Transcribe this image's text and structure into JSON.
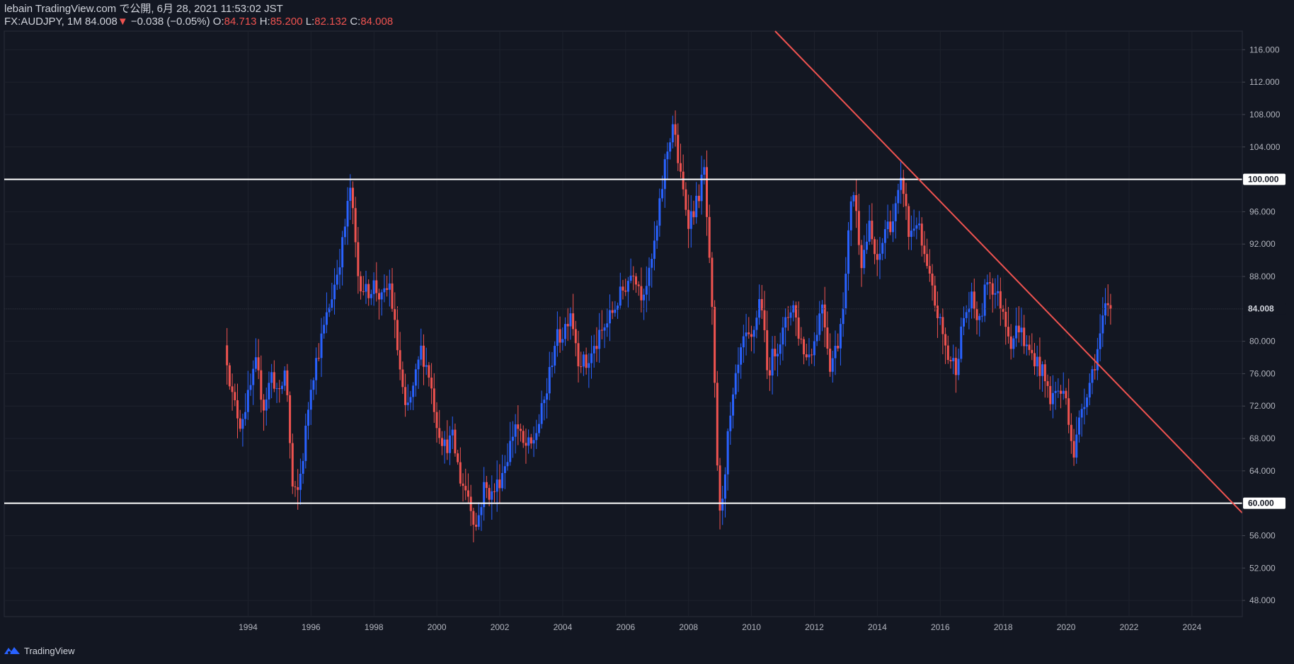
{
  "header": {
    "line1": "lebain TradingView.com で公開, 6月 28, 2021 11:53:02 JST",
    "symbol": "FX:AUDJPY, 1M",
    "last": "84.008",
    "change": "−0.038 (−0.05%)",
    "o_label": "O:",
    "o_value": "84.713",
    "h_label": "H:",
    "h_value": "85.200",
    "l_label": "L:",
    "l_value": "82.132",
    "c_label": "C:",
    "c_value": "84.008"
  },
  "footer": {
    "brand": "TradingView"
  },
  "colors": {
    "background": "#131722",
    "up": "#2962ff",
    "down": "#ef5350",
    "grid": "#1e222d",
    "axis_text": "#b2b5be"
  },
  "chart_data": {
    "type": "candlestick",
    "symbol": "FX:AUDJPY",
    "interval": "1M",
    "xlim": [
      1986.25,
      2025.6
    ],
    "ylim": [
      46.0,
      118.3
    ],
    "x_ticks": [
      1994,
      1996,
      1998,
      2000,
      2002,
      2004,
      2006,
      2008,
      2010,
      2012,
      2014,
      2016,
      2018,
      2020,
      2022,
      2024
    ],
    "y_ticks": [
      48,
      52,
      56,
      60,
      64,
      68,
      72,
      76,
      80,
      84,
      88,
      92,
      96,
      100,
      104,
      108,
      112,
      116
    ],
    "horizontal_lines": [
      {
        "price": 100.0,
        "label": "100.000",
        "color": "#ffffff"
      },
      {
        "price": 60.0,
        "label": "60.000",
        "color": "#ffffff"
      }
    ],
    "trendline": {
      "from": {
        "x": 2010.75,
        "y": 118.3
      },
      "to": {
        "x": 2025.6,
        "y": 58.8
      },
      "color": "#ef5350"
    },
    "last_price": {
      "price": 84.008,
      "label": "84.008"
    },
    "close_path": [
      [
        1993.33,
        78.0
      ],
      [
        1993.5,
        73.0
      ],
      [
        1993.75,
        70.0
      ],
      [
        1994.0,
        73.0
      ],
      [
        1994.25,
        77.0
      ],
      [
        1994.5,
        72.0
      ],
      [
        1994.75,
        76.0
      ],
      [
        1995.0,
        73.0
      ],
      [
        1995.2,
        77.0
      ],
      [
        1995.4,
        62.0
      ],
      [
        1995.55,
        60.5
      ],
      [
        1995.75,
        66.0
      ],
      [
        1996.0,
        75.0
      ],
      [
        1996.5,
        83.0
      ],
      [
        1996.8,
        88.0
      ],
      [
        1997.0,
        92.0
      ],
      [
        1997.25,
        99.0
      ],
      [
        1997.5,
        88.0
      ],
      [
        1997.75,
        86.0
      ],
      [
        1998.0,
        87.0
      ],
      [
        1998.25,
        85.0
      ],
      [
        1998.5,
        87.0
      ],
      [
        1998.75,
        79.0
      ],
      [
        1999.0,
        71.0
      ],
      [
        1999.25,
        74.0
      ],
      [
        1999.5,
        79.0
      ],
      [
        1999.75,
        76.0
      ],
      [
        2000.0,
        70.0
      ],
      [
        2000.25,
        67.0
      ],
      [
        2000.5,
        68.0
      ],
      [
        2000.75,
        63.0
      ],
      [
        2001.0,
        61.0
      ],
      [
        2001.25,
        57.0
      ],
      [
        2001.5,
        62.0
      ],
      [
        2001.75,
        61.0
      ],
      [
        2002.0,
        63.0
      ],
      [
        2002.25,
        66.0
      ],
      [
        2002.5,
        70.0
      ],
      [
        2002.75,
        67.0
      ],
      [
        2003.0,
        67.0
      ],
      [
        2003.25,
        70.0
      ],
      [
        2003.5,
        74.0
      ],
      [
        2003.75,
        80.0
      ],
      [
        2004.0,
        81.0
      ],
      [
        2004.25,
        84.0
      ],
      [
        2004.5,
        78.0
      ],
      [
        2004.75,
        77.0
      ],
      [
        2005.0,
        79.0
      ],
      [
        2005.5,
        83.0
      ],
      [
        2005.75,
        85.0
      ],
      [
        2006.0,
        87.0
      ],
      [
        2006.25,
        89.0
      ],
      [
        2006.5,
        86.0
      ],
      [
        2006.75,
        88.0
      ],
      [
        2007.0,
        94.0
      ],
      [
        2007.25,
        102.0
      ],
      [
        2007.5,
        107.0
      ],
      [
        2007.75,
        100.0
      ],
      [
        2008.0,
        95.0
      ],
      [
        2008.25,
        97.0
      ],
      [
        2008.5,
        101.0
      ],
      [
        2008.75,
        83.0
      ],
      [
        2008.9,
        66.0
      ],
      [
        2009.0,
        58.0
      ],
      [
        2009.25,
        68.0
      ],
      [
        2009.5,
        75.0
      ],
      [
        2009.75,
        80.0
      ],
      [
        2010.0,
        80.0
      ],
      [
        2010.3,
        86.0
      ],
      [
        2010.5,
        76.0
      ],
      [
        2010.75,
        79.0
      ],
      [
        2011.0,
        81.0
      ],
      [
        2011.3,
        85.0
      ],
      [
        2011.5,
        81.0
      ],
      [
        2011.75,
        78.0
      ],
      [
        2012.0,
        80.0
      ],
      [
        2012.25,
        85.0
      ],
      [
        2012.5,
        77.0
      ],
      [
        2012.75,
        80.0
      ],
      [
        2013.0,
        88.0
      ],
      [
        2013.2,
        100.0
      ],
      [
        2013.5,
        90.0
      ],
      [
        2013.75,
        94.0
      ],
      [
        2014.0,
        89.0
      ],
      [
        2014.25,
        94.0
      ],
      [
        2014.5,
        95.0
      ],
      [
        2014.8,
        100.0
      ],
      [
        2015.0,
        93.0
      ],
      [
        2015.25,
        95.0
      ],
      [
        2015.5,
        90.0
      ],
      [
        2015.75,
        86.0
      ],
      [
        2016.0,
        82.0
      ],
      [
        2016.25,
        78.0
      ],
      [
        2016.5,
        77.0
      ],
      [
        2016.75,
        83.0
      ],
      [
        2017.0,
        85.0
      ],
      [
        2017.25,
        82.0
      ],
      [
        2017.5,
        88.0
      ],
      [
        2017.75,
        86.0
      ],
      [
        2018.0,
        84.0
      ],
      [
        2018.25,
        80.0
      ],
      [
        2018.5,
        82.0
      ],
      [
        2018.75,
        79.0
      ],
      [
        2019.0,
        78.0
      ],
      [
        2019.25,
        76.0
      ],
      [
        2019.5,
        73.0
      ],
      [
        2019.75,
        74.0
      ],
      [
        2020.0,
        73.0
      ],
      [
        2020.25,
        66.0
      ],
      [
        2020.5,
        72.0
      ],
      [
        2020.75,
        75.0
      ],
      [
        2021.0,
        79.0
      ],
      [
        2021.25,
        84.0
      ],
      [
        2021.42,
        84.008
      ]
    ]
  }
}
